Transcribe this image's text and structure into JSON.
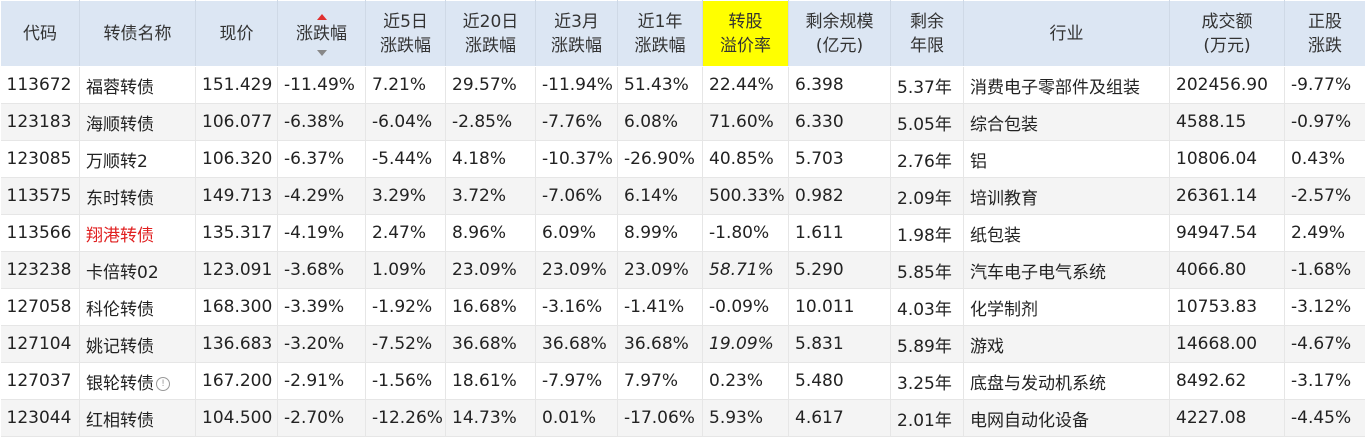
{
  "columns": [
    {
      "key": "code",
      "label": "代码"
    },
    {
      "key": "name",
      "label": "转债名称"
    },
    {
      "key": "price",
      "label": "现价"
    },
    {
      "key": "chg",
      "label": "涨跌幅"
    },
    {
      "key": "chg5",
      "label": "近5日\n涨跌幅"
    },
    {
      "key": "chg20",
      "label": "近20日\n涨跌幅"
    },
    {
      "key": "chg3m",
      "label": "近3月\n涨跌幅"
    },
    {
      "key": "chg1y",
      "label": "近1年\n涨跌幅"
    },
    {
      "key": "premium",
      "label": "转股\n溢价率"
    },
    {
      "key": "scale",
      "label": "剩余规模\n(亿元)"
    },
    {
      "key": "years",
      "label": "剩余\n年限"
    },
    {
      "key": "industry",
      "label": "行业"
    },
    {
      "key": "volume",
      "label": "成交额\n(万元)"
    },
    {
      "key": "stockchg",
      "label": "正股\n涨跌"
    }
  ],
  "colors": {
    "up": "#e02020",
    "down": "#1f8a1f",
    "header_bg": "#dce6f3",
    "highlight": "#ffff00",
    "code": "#2a5d9c"
  },
  "rows": [
    {
      "code": "113672",
      "name": "福蓉转债",
      "price": "151.429",
      "chg": "-11.49%",
      "chg5": "7.21%",
      "chg20": "29.57%",
      "chg3m": "-11.94%",
      "chg1y": "51.43%",
      "premium": "22.44%",
      "scale": "6.398",
      "years": "5.37年",
      "industry": "消费电子零部件及组装",
      "volume": "202456.90",
      "stockchg": "-9.77%"
    },
    {
      "code": "123183",
      "name": "海顺转债",
      "price": "106.077",
      "chg": "-6.38%",
      "chg5": "-6.04%",
      "chg20": "-2.85%",
      "chg3m": "-7.76%",
      "chg1y": "6.08%",
      "premium": "71.60%",
      "scale": "6.330",
      "years": "5.05年",
      "industry": "综合包装",
      "volume": "4588.15",
      "stockchg": "-0.97%"
    },
    {
      "code": "123085",
      "name": "万顺转2",
      "price": "106.320",
      "chg": "-6.37%",
      "chg5": "-5.44%",
      "chg20": "4.18%",
      "chg3m": "-10.37%",
      "chg1y": "-26.90%",
      "premium": "40.85%",
      "scale": "5.703",
      "years": "2.76年",
      "industry": "铝",
      "volume": "10806.04",
      "stockchg": "0.43%"
    },
    {
      "code": "113575",
      "name": "东时转债",
      "price": "149.713",
      "chg": "-4.29%",
      "chg5": "3.29%",
      "chg20": "3.72%",
      "chg3m": "-7.06%",
      "chg1y": "6.14%",
      "premium": "500.33%",
      "scale": "0.982",
      "years": "2.09年",
      "industry": "培训教育",
      "volume": "26361.14",
      "stockchg": "-2.57%"
    },
    {
      "code": "113566",
      "name": "翔港转债",
      "price": "135.317",
      "chg": "-4.19%",
      "chg5": "2.47%",
      "chg20": "8.96%",
      "chg3m": "6.09%",
      "chg1y": "8.99%",
      "premium": "-1.80%",
      "scale": "1.611",
      "years": "1.98年",
      "industry": "纸包装",
      "volume": "94947.54",
      "stockchg": "2.49%"
    },
    {
      "code": "123238",
      "name": "卡倍转02",
      "price": "123.091",
      "chg": "-3.68%",
      "chg5": "1.09%",
      "chg20": "23.09%",
      "chg3m": "23.09%",
      "chg1y": "23.09%",
      "premium": "58.71%",
      "scale": "5.290",
      "years": "5.85年",
      "industry": "汽车电子电气系统",
      "volume": "4066.80",
      "stockchg": "-1.68%"
    },
    {
      "code": "127058",
      "name": "科伦转债",
      "price": "168.300",
      "chg": "-3.39%",
      "chg5": "-1.92%",
      "chg20": "16.68%",
      "chg3m": "-3.16%",
      "chg1y": "-1.41%",
      "premium": "-0.09%",
      "scale": "10.011",
      "years": "4.03年",
      "industry": "化学制剂",
      "volume": "10753.83",
      "stockchg": "-3.12%"
    },
    {
      "code": "127104",
      "name": "姚记转债",
      "price": "136.683",
      "chg": "-3.20%",
      "chg5": "-7.52%",
      "chg20": "36.68%",
      "chg3m": "36.68%",
      "chg1y": "36.68%",
      "premium": "19.09%",
      "scale": "5.831",
      "years": "5.89年",
      "industry": "游戏",
      "volume": "14668.00",
      "stockchg": "-4.67%"
    },
    {
      "code": "127037",
      "name": "银轮转债",
      "price": "167.200",
      "chg": "-2.91%",
      "chg5": "-1.56%",
      "chg20": "18.61%",
      "chg3m": "-7.97%",
      "chg1y": "7.97%",
      "premium": "0.23%",
      "scale": "5.480",
      "years": "3.25年",
      "industry": "底盘与发动机系统",
      "volume": "8492.62",
      "stockchg": "-3.17%"
    },
    {
      "code": "123044",
      "name": "红相转债",
      "price": "104.500",
      "chg": "-2.70%",
      "chg5": "-12.26%",
      "chg20": "14.73%",
      "chg3m": "0.01%",
      "chg1y": "-17.06%",
      "premium": "5.93%",
      "scale": "4.617",
      "years": "2.01年",
      "industry": "电网自动化设备",
      "volume": "4227.08",
      "stockchg": "-4.45%"
    }
  ],
  "row_flags": {
    "red_name_rows": [
      4
    ],
    "italic_premium_rows": [
      5,
      7
    ],
    "info_icon_rows": [
      8
    ]
  },
  "icons": {
    "sort_indicator": "sort-arrows-icon",
    "info": "info-circle-icon"
  }
}
